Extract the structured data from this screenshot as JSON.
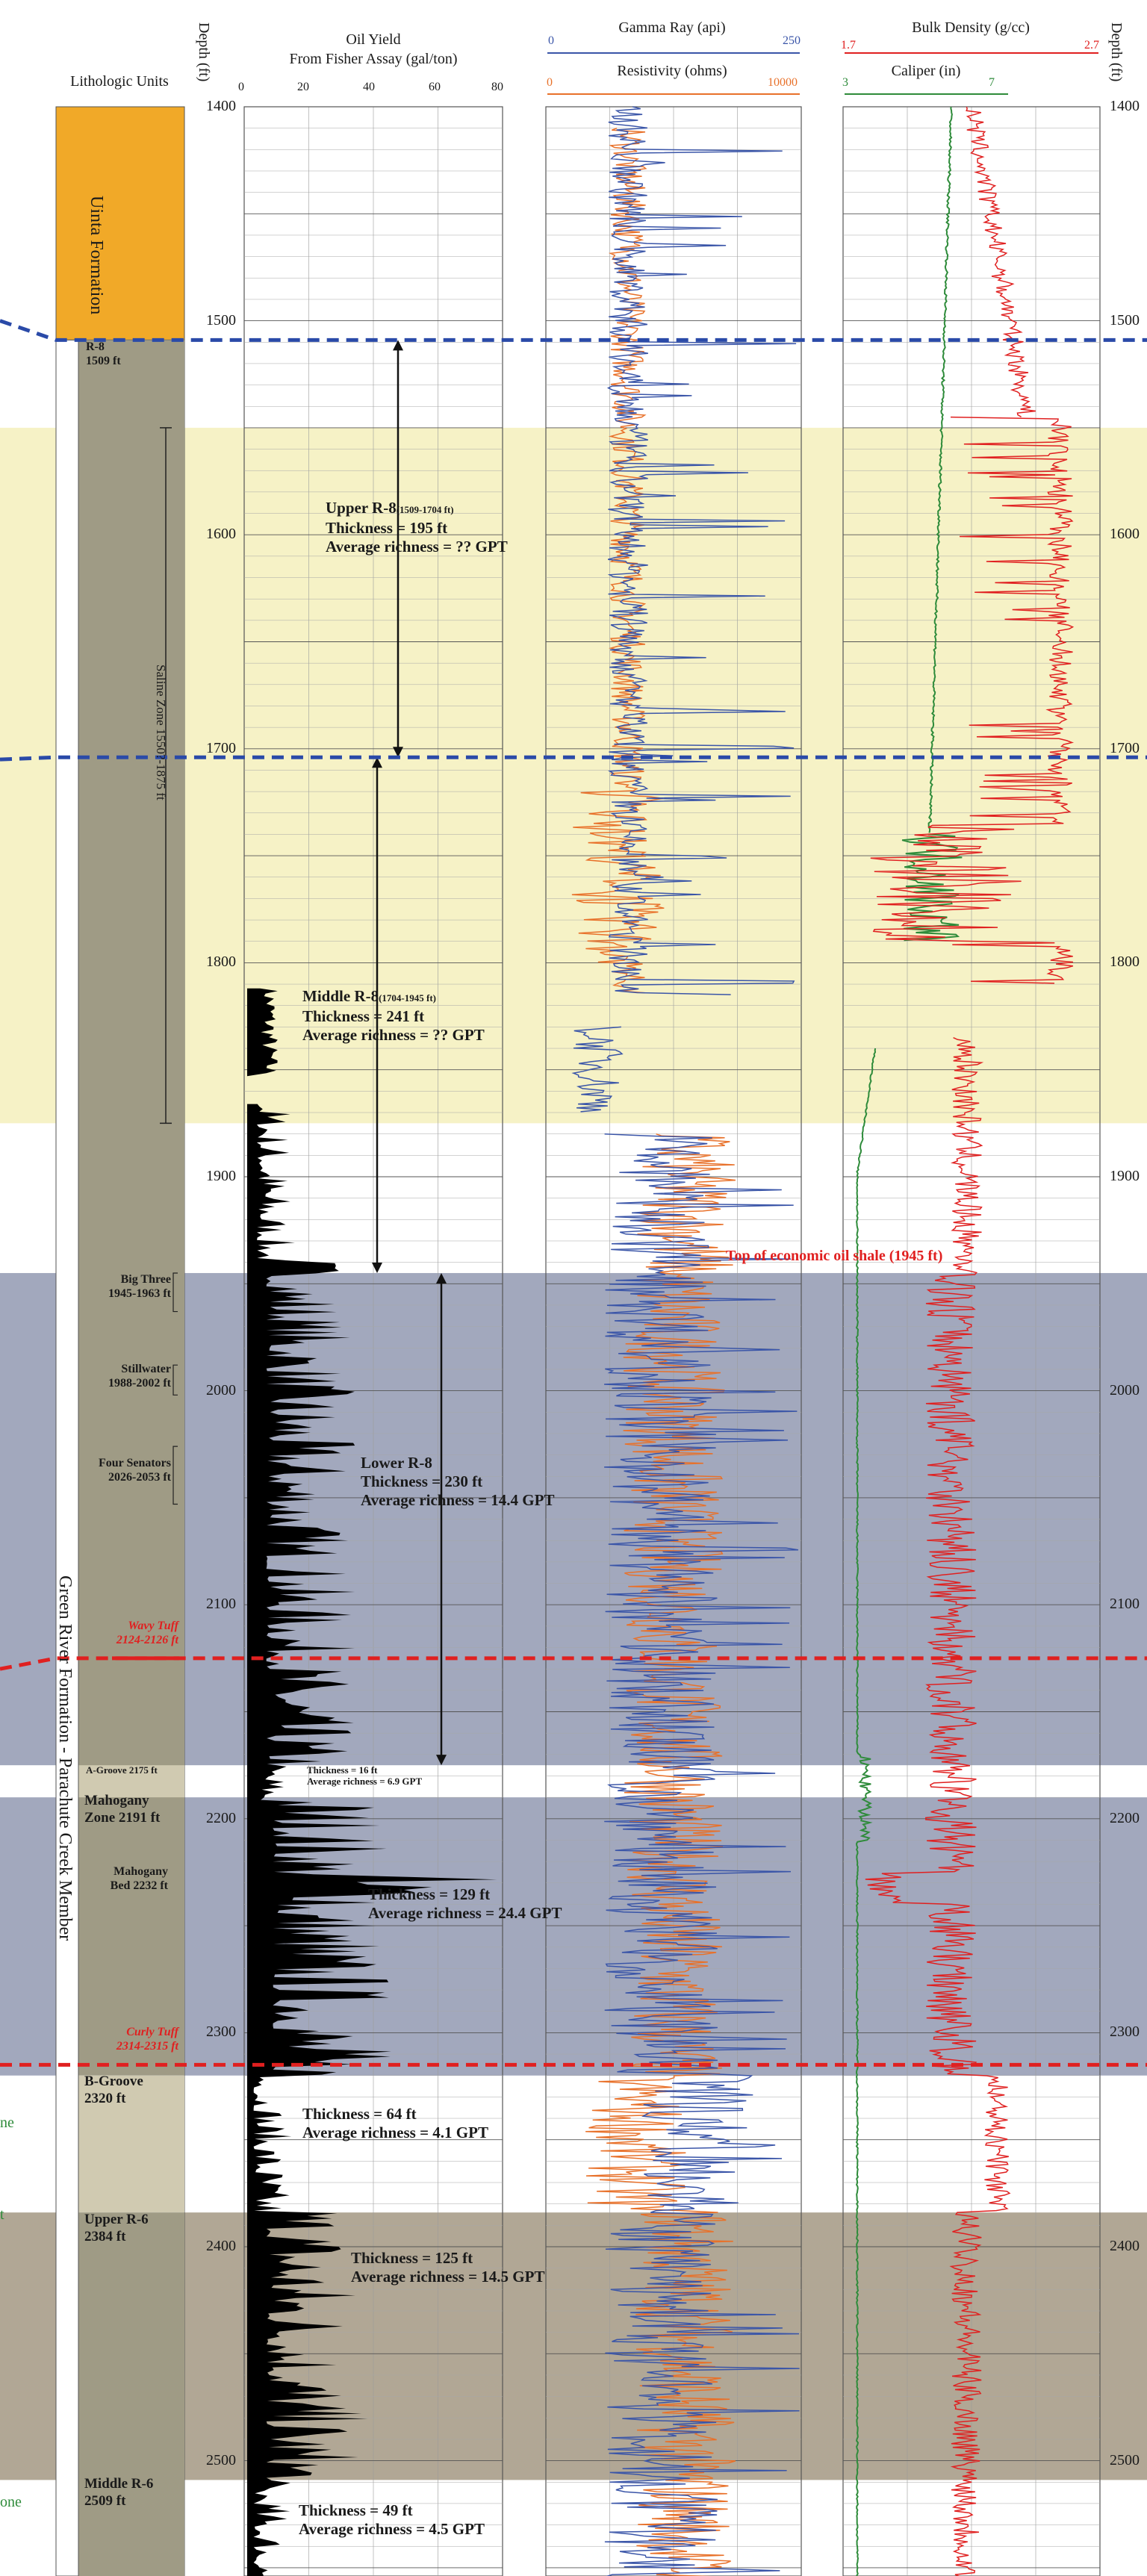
{
  "headers": {
    "lithologic_units": "Lithologic Units",
    "depth": "Depth (ft)",
    "oil_yield_title": "Oil Yield",
    "oil_yield_sub": "From Fisher Assay (gal/ton)",
    "oil_ticks": [
      "0",
      "20",
      "40",
      "60",
      "80"
    ],
    "gamma_title": "Gamma Ray (api)",
    "gamma_min": "0",
    "gamma_max": "250",
    "resistivity_title": "Resistivity (ohms)",
    "res_min": "0",
    "res_max": "10000",
    "density_title": "Bulk Density (g/cc)",
    "density_min": "1.7",
    "density_max": "2.7",
    "caliper_title": "Caliper (in)",
    "caliper_min": "3",
    "caliper_max": "7"
  },
  "depth_ticks": [
    "1400",
    "1500",
    "1600",
    "1700",
    "1800",
    "1900",
    "2000",
    "2100",
    "2200",
    "2300",
    "2400",
    "2500"
  ],
  "units": {
    "uinta": "Uinta Formation",
    "green_river": "Green River Formation - Parachute Creek Member",
    "saline_zone": "Saline Zone 1550?-1875 ft"
  },
  "zones": {
    "r8": [
      "R-8",
      "1509 ft"
    ],
    "big_three": [
      "Big Three",
      "1945-1963 ft"
    ],
    "stillwater": [
      "Stillwater",
      "1988-2002 ft"
    ],
    "four_senators": [
      "Four Senators",
      "2026-2053 ft"
    ],
    "wavy_tuff": [
      "Wavy Tuff",
      "2124-2126 ft"
    ],
    "a_groove": "A-Groove 2175 ft",
    "mahogany_zone": [
      "Mahogany",
      "Zone 2191 ft"
    ],
    "mahogany_bed": [
      "Mahogany",
      "Bed 2232 ft"
    ],
    "curly_tuff": [
      "Curly Tuff",
      "2314-2315 ft"
    ],
    "b_groove": [
      "B-Groove",
      "2320 ft"
    ],
    "upper_r6": [
      "Upper R-6",
      "2384 ft"
    ],
    "middle_r6": [
      "Middle R-6",
      "2509 ft"
    ]
  },
  "intervals": {
    "upper_r8": {
      "name": "Upper R-8",
      "range": "(1509-1704 ft)",
      "thickness": "Thickness = 195 ft",
      "richness": "Average richness = ?? GPT"
    },
    "middle_r8": {
      "name": "Middle R-8",
      "range": "(1704-1945 ft)",
      "thickness": "Thickness = 241 ft",
      "richness": "Average richness = ?? GPT"
    },
    "lower_r8": {
      "name": "Lower R-8",
      "thickness": "Thickness = 230 ft",
      "richness": "Average richness = 14.4 GPT"
    },
    "a_groove": {
      "thickness": "Thickness = 16 ft",
      "richness": "Average richness = 6.9 GPT"
    },
    "mahogany": {
      "thickness": "Thickness = 129 ft",
      "richness": "Average richness = 24.4 GPT"
    },
    "b_groove": {
      "thickness": "Thickness = 64 ft",
      "richness": "Average richness = 4.1 GPT"
    },
    "upper_r6": {
      "thickness": "Thickness = 125 ft",
      "richness": "Average richness = 14.5 GPT"
    },
    "middle_r6": {
      "thickness": "Thickness = 49 ft",
      "richness": "Average richness = 4.5 GPT"
    }
  },
  "top_economic": "Top of economic oil shale (1945 ft)",
  "left_edge_fragments": [
    "ne",
    "t",
    "one"
  ],
  "colors": {
    "saline": "#f6f2c6",
    "rich_shale": "#a2a8bd",
    "upper_r6_band": "#b1a795",
    "lithology_column": "#9f9b85",
    "b_groove_column": "#d0cab1",
    "uinta": "#f1a928",
    "gamma": "#3a55a8",
    "resistivity": "#e8712a",
    "density": "#e02020",
    "caliper": "#2e8b3a",
    "oil_yield": "#000000",
    "blue_dash": "#2a4aa8",
    "red_dash": "#e02020"
  }
}
